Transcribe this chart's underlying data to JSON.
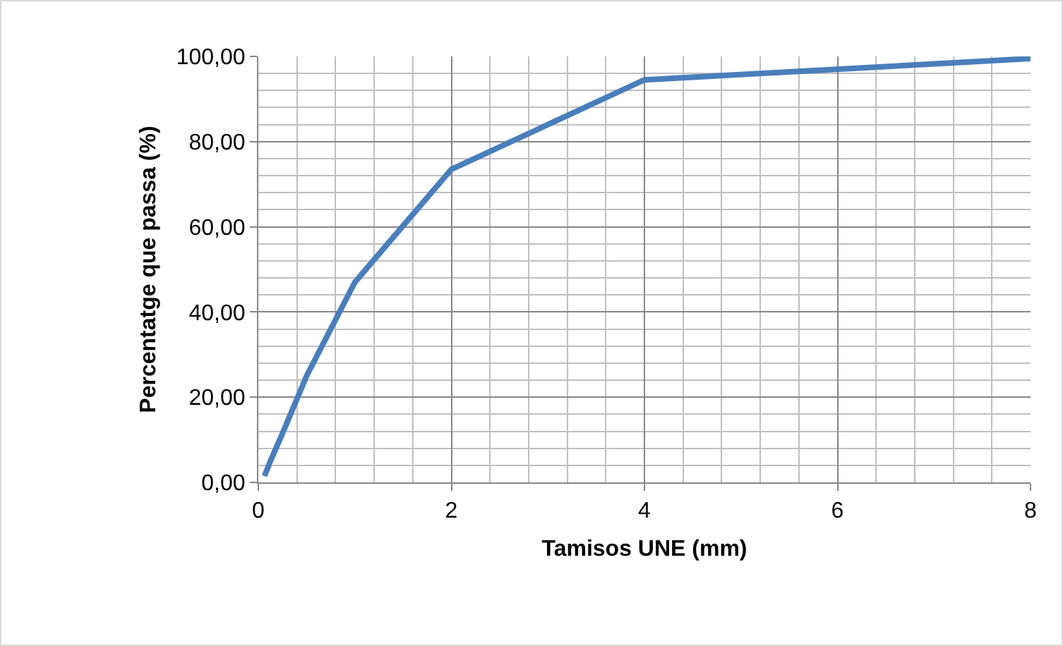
{
  "chart_data": {
    "type": "line",
    "xlabel": "Tamisos UNE (mm)",
    "ylabel": "Percentatge que passa (%)",
    "x": [
      0.063,
      0.125,
      0.25,
      0.5,
      1,
      2,
      4,
      8
    ],
    "series": [
      {
        "color": "#4a7ebb",
        "values": [
          1.5,
          5,
          11.5,
          25,
          47,
          73.5,
          94.5,
          99.5
        ]
      }
    ],
    "xlim": [
      0,
      8
    ],
    "xticks": [
      0,
      2,
      4,
      6,
      8
    ],
    "ylim": [
      0,
      100
    ],
    "yticks": [
      {
        "value": 0,
        "label": "0,00"
      },
      {
        "value": 20,
        "label": "20,00"
      },
      {
        "value": 40,
        "label": "40,00"
      },
      {
        "value": 60,
        "label": "60,00"
      },
      {
        "value": 80,
        "label": "80,00"
      },
      {
        "value": 100,
        "label": "100,00"
      }
    ],
    "grid": true,
    "marker": "none",
    "line_style": "solid"
  }
}
